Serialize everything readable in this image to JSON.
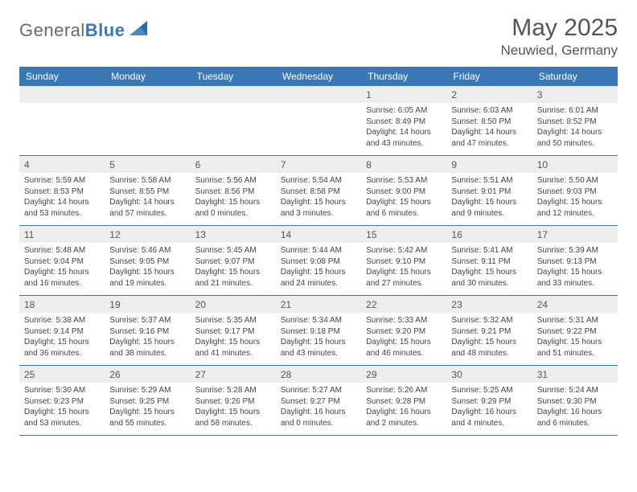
{
  "logo": {
    "text_part1": "General",
    "text_part2": "Blue"
  },
  "title": "May 2025",
  "location": "Neuwied, Germany",
  "colors": {
    "header_bg": "#3a78b5",
    "header_fg": "#ffffff",
    "daynum_bg": "#ededed",
    "rule": "#3a78b5",
    "text": "#444444"
  },
  "weekdays": [
    "Sunday",
    "Monday",
    "Tuesday",
    "Wednesday",
    "Thursday",
    "Friday",
    "Saturday"
  ],
  "weeks": [
    [
      {
        "n": "",
        "sr": "",
        "ss": "",
        "dl": ""
      },
      {
        "n": "",
        "sr": "",
        "ss": "",
        "dl": ""
      },
      {
        "n": "",
        "sr": "",
        "ss": "",
        "dl": ""
      },
      {
        "n": "",
        "sr": "",
        "ss": "",
        "dl": ""
      },
      {
        "n": "1",
        "sr": "Sunrise: 6:05 AM",
        "ss": "Sunset: 8:49 PM",
        "dl": "Daylight: 14 hours and 43 minutes."
      },
      {
        "n": "2",
        "sr": "Sunrise: 6:03 AM",
        "ss": "Sunset: 8:50 PM",
        "dl": "Daylight: 14 hours and 47 minutes."
      },
      {
        "n": "3",
        "sr": "Sunrise: 6:01 AM",
        "ss": "Sunset: 8:52 PM",
        "dl": "Daylight: 14 hours and 50 minutes."
      }
    ],
    [
      {
        "n": "4",
        "sr": "Sunrise: 5:59 AM",
        "ss": "Sunset: 8:53 PM",
        "dl": "Daylight: 14 hours and 53 minutes."
      },
      {
        "n": "5",
        "sr": "Sunrise: 5:58 AM",
        "ss": "Sunset: 8:55 PM",
        "dl": "Daylight: 14 hours and 57 minutes."
      },
      {
        "n": "6",
        "sr": "Sunrise: 5:56 AM",
        "ss": "Sunset: 8:56 PM",
        "dl": "Daylight: 15 hours and 0 minutes."
      },
      {
        "n": "7",
        "sr": "Sunrise: 5:54 AM",
        "ss": "Sunset: 8:58 PM",
        "dl": "Daylight: 15 hours and 3 minutes."
      },
      {
        "n": "8",
        "sr": "Sunrise: 5:53 AM",
        "ss": "Sunset: 9:00 PM",
        "dl": "Daylight: 15 hours and 6 minutes."
      },
      {
        "n": "9",
        "sr": "Sunrise: 5:51 AM",
        "ss": "Sunset: 9:01 PM",
        "dl": "Daylight: 15 hours and 9 minutes."
      },
      {
        "n": "10",
        "sr": "Sunrise: 5:50 AM",
        "ss": "Sunset: 9:03 PM",
        "dl": "Daylight: 15 hours and 12 minutes."
      }
    ],
    [
      {
        "n": "11",
        "sr": "Sunrise: 5:48 AM",
        "ss": "Sunset: 9:04 PM",
        "dl": "Daylight: 15 hours and 16 minutes."
      },
      {
        "n": "12",
        "sr": "Sunrise: 5:46 AM",
        "ss": "Sunset: 9:05 PM",
        "dl": "Daylight: 15 hours and 19 minutes."
      },
      {
        "n": "13",
        "sr": "Sunrise: 5:45 AM",
        "ss": "Sunset: 9:07 PM",
        "dl": "Daylight: 15 hours and 21 minutes."
      },
      {
        "n": "14",
        "sr": "Sunrise: 5:44 AM",
        "ss": "Sunset: 9:08 PM",
        "dl": "Daylight: 15 hours and 24 minutes."
      },
      {
        "n": "15",
        "sr": "Sunrise: 5:42 AM",
        "ss": "Sunset: 9:10 PM",
        "dl": "Daylight: 15 hours and 27 minutes."
      },
      {
        "n": "16",
        "sr": "Sunrise: 5:41 AM",
        "ss": "Sunset: 9:11 PM",
        "dl": "Daylight: 15 hours and 30 minutes."
      },
      {
        "n": "17",
        "sr": "Sunrise: 5:39 AM",
        "ss": "Sunset: 9:13 PM",
        "dl": "Daylight: 15 hours and 33 minutes."
      }
    ],
    [
      {
        "n": "18",
        "sr": "Sunrise: 5:38 AM",
        "ss": "Sunset: 9:14 PM",
        "dl": "Daylight: 15 hours and 36 minutes."
      },
      {
        "n": "19",
        "sr": "Sunrise: 5:37 AM",
        "ss": "Sunset: 9:16 PM",
        "dl": "Daylight: 15 hours and 38 minutes."
      },
      {
        "n": "20",
        "sr": "Sunrise: 5:35 AM",
        "ss": "Sunset: 9:17 PM",
        "dl": "Daylight: 15 hours and 41 minutes."
      },
      {
        "n": "21",
        "sr": "Sunrise: 5:34 AM",
        "ss": "Sunset: 9:18 PM",
        "dl": "Daylight: 15 hours and 43 minutes."
      },
      {
        "n": "22",
        "sr": "Sunrise: 5:33 AM",
        "ss": "Sunset: 9:20 PM",
        "dl": "Daylight: 15 hours and 46 minutes."
      },
      {
        "n": "23",
        "sr": "Sunrise: 5:32 AM",
        "ss": "Sunset: 9:21 PM",
        "dl": "Daylight: 15 hours and 48 minutes."
      },
      {
        "n": "24",
        "sr": "Sunrise: 5:31 AM",
        "ss": "Sunset: 9:22 PM",
        "dl": "Daylight: 15 hours and 51 minutes."
      }
    ],
    [
      {
        "n": "25",
        "sr": "Sunrise: 5:30 AM",
        "ss": "Sunset: 9:23 PM",
        "dl": "Daylight: 15 hours and 53 minutes."
      },
      {
        "n": "26",
        "sr": "Sunrise: 5:29 AM",
        "ss": "Sunset: 9:25 PM",
        "dl": "Daylight: 15 hours and 55 minutes."
      },
      {
        "n": "27",
        "sr": "Sunrise: 5:28 AM",
        "ss": "Sunset: 9:26 PM",
        "dl": "Daylight: 15 hours and 58 minutes."
      },
      {
        "n": "28",
        "sr": "Sunrise: 5:27 AM",
        "ss": "Sunset: 9:27 PM",
        "dl": "Daylight: 16 hours and 0 minutes."
      },
      {
        "n": "29",
        "sr": "Sunrise: 5:26 AM",
        "ss": "Sunset: 9:28 PM",
        "dl": "Daylight: 16 hours and 2 minutes."
      },
      {
        "n": "30",
        "sr": "Sunrise: 5:25 AM",
        "ss": "Sunset: 9:29 PM",
        "dl": "Daylight: 16 hours and 4 minutes."
      },
      {
        "n": "31",
        "sr": "Sunrise: 5:24 AM",
        "ss": "Sunset: 9:30 PM",
        "dl": "Daylight: 16 hours and 6 minutes."
      }
    ]
  ]
}
